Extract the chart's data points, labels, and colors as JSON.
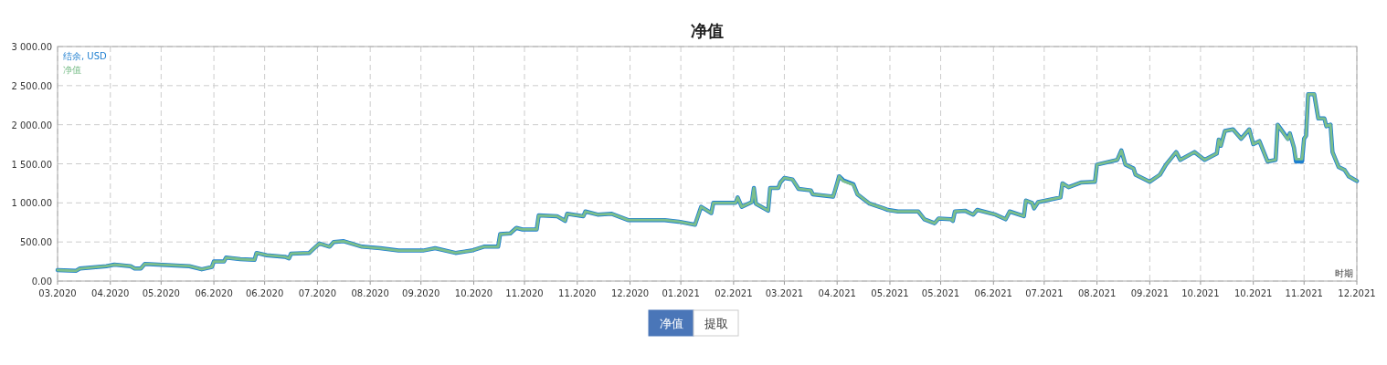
{
  "chart_data": {
    "type": "line",
    "title": "净值",
    "xlabel": "时期",
    "xlim": [
      "2020-03-18",
      "2021-12-18"
    ],
    "xticks": [
      {
        "value": "2020-03-18",
        "label": "03.2020"
      },
      {
        "value": "2020-04-13",
        "label": "04.2020"
      },
      {
        "value": "2020-05-08",
        "label": "05.2020"
      },
      {
        "value": "2020-06-03",
        "label": "06.2020"
      },
      {
        "value": "2020-06-28",
        "label": "06.2020"
      },
      {
        "value": "2020-07-24",
        "label": "07.2020"
      },
      {
        "value": "2020-08-19",
        "label": "08.2020"
      },
      {
        "value": "2020-09-13",
        "label": "09.2020"
      },
      {
        "value": "2020-10-09",
        "label": "10.2020"
      },
      {
        "value": "2020-11-03",
        "label": "11.2020"
      },
      {
        "value": "2020-11-29",
        "label": "11.2020"
      },
      {
        "value": "2020-12-25",
        "label": "12.2020"
      },
      {
        "value": "2021-01-19",
        "label": "01.2021"
      },
      {
        "value": "2021-02-14",
        "label": "02.2021"
      },
      {
        "value": "2021-03-11",
        "label": "03.2021"
      },
      {
        "value": "2021-04-06",
        "label": "04.2021"
      },
      {
        "value": "2021-05-02",
        "label": "05.2021"
      },
      {
        "value": "2021-05-27",
        "label": "05.2021"
      },
      {
        "value": "2021-06-22",
        "label": "06.2021"
      },
      {
        "value": "2021-07-17",
        "label": "07.2021"
      },
      {
        "value": "2021-08-12",
        "label": "08.2021"
      },
      {
        "value": "2021-09-07",
        "label": "09.2021"
      },
      {
        "value": "2021-10-02",
        "label": "10.2021"
      },
      {
        "value": "2021-10-28",
        "label": "10.2021"
      },
      {
        "value": "2021-11-22",
        "label": "11.2021"
      },
      {
        "value": "2021-12-18",
        "label": "12.2021"
      }
    ],
    "ylim": [
      0,
      3000
    ],
    "yticks": [
      {
        "value": 0,
        "label": "0.00"
      },
      {
        "value": 500,
        "label": "500.00"
      },
      {
        "value": 1000,
        "label": "1 000.00"
      },
      {
        "value": 1500,
        "label": "1 500.00"
      },
      {
        "value": 2000,
        "label": "2 000.00"
      },
      {
        "value": 2500,
        "label": "2 500.00"
      },
      {
        "value": 3000,
        "label": "3 000.00"
      }
    ],
    "grid": true,
    "legend": "top left",
    "line_style": "solid",
    "x": [
      "2020-03-18",
      "2020-03-27",
      "2020-03-29",
      "2020-04-11",
      "2020-04-15",
      "2020-04-23",
      "2020-04-25",
      "2020-04-28",
      "2020-04-30",
      "2020-05-22",
      "2020-05-28",
      "2020-06-02",
      "2020-06-03",
      "2020-06-08",
      "2020-06-09",
      "2020-06-16",
      "2020-06-23",
      "2020-06-24",
      "2020-06-29",
      "2020-07-08",
      "2020-07-10",
      "2020-07-11",
      "2020-07-20",
      "2020-07-22",
      "2020-07-25",
      "2020-07-30",
      "2020-08-01",
      "2020-08-06",
      "2020-08-15",
      "2020-08-24",
      "2020-09-02",
      "2020-09-14",
      "2020-09-20",
      "2020-09-30",
      "2020-10-08",
      "2020-10-14",
      "2020-10-21",
      "2020-10-22",
      "2020-10-27",
      "2020-10-30",
      "2020-11-02",
      "2020-11-09",
      "2020-11-10",
      "2020-11-19",
      "2020-11-23",
      "2020-11-24",
      "2020-12-02",
      "2020-12-03",
      "2020-12-09",
      "2020-12-16",
      "2020-12-24",
      "2021-01-11",
      "2021-01-18",
      "2021-01-26",
      "2021-01-29",
      "2021-02-03",
      "2021-02-04",
      "2021-02-15",
      "2021-02-16",
      "2021-02-18",
      "2021-02-23",
      "2021-02-24",
      "2021-02-25",
      "2021-03-03",
      "2021-03-04",
      "2021-03-08",
      "2021-03-09",
      "2021-03-11",
      "2021-03-15",
      "2021-03-18",
      "2021-03-24",
      "2021-03-25",
      "2021-04-04",
      "2021-04-05",
      "2021-04-07",
      "2021-04-09",
      "2021-04-14",
      "2021-04-16",
      "2021-04-22",
      "2021-04-29",
      "2021-05-01",
      "2021-05-06",
      "2021-05-16",
      "2021-05-19",
      "2021-05-24",
      "2021-05-26",
      "2021-06-01",
      "2021-06-02",
      "2021-06-03",
      "2021-06-08",
      "2021-06-12",
      "2021-06-14",
      "2021-06-23",
      "2021-06-28",
      "2021-06-30",
      "2021-07-07",
      "2021-07-08",
      "2021-07-11",
      "2021-07-12",
      "2021-07-14",
      "2021-07-25",
      "2021-07-26",
      "2021-07-29",
      "2021-08-04",
      "2021-08-11",
      "2021-08-12",
      "2021-08-22",
      "2021-08-24",
      "2021-08-26",
      "2021-08-30",
      "2021-08-31",
      "2021-09-07",
      "2021-09-12",
      "2021-09-15",
      "2021-09-20",
      "2021-09-22",
      "2021-09-29",
      "2021-10-04",
      "2021-10-10",
      "2021-10-11",
      "2021-10-12",
      "2021-10-14",
      "2021-10-18",
      "2021-10-22",
      "2021-10-26",
      "2021-10-28",
      "2021-10-31",
      "2021-11-04",
      "2021-11-08",
      "2021-11-09",
      "2021-11-14",
      "2021-11-15",
      "2021-11-17",
      "2021-11-18",
      "2021-11-21",
      "2021-11-22",
      "2021-11-23",
      "2021-11-24",
      "2021-11-27",
      "2021-11-29",
      "2021-12-02",
      "2021-12-03",
      "2021-12-05",
      "2021-12-06",
      "2021-12-09",
      "2021-12-12",
      "2021-12-14",
      "2021-12-18"
    ],
    "series": [
      {
        "name": "结余, USD",
        "color": "#1f7fd0",
        "values": [
          140,
          130,
          160,
          190,
          210,
          190,
          160,
          160,
          220,
          190,
          150,
          180,
          250,
          250,
          300,
          280,
          270,
          360,
          330,
          310,
          290,
          350,
          360,
          410,
          480,
          440,
          500,
          510,
          440,
          420,
          390,
          390,
          420,
          360,
          390,
          440,
          440,
          600,
          610,
          680,
          660,
          660,
          840,
          830,
          770,
          860,
          830,
          890,
          850,
          860,
          780,
          780,
          760,
          720,
          950,
          870,
          1000,
          1000,
          1070,
          950,
          1010,
          1190,
          990,
          900,
          1190,
          1190,
          1260,
          1320,
          1300,
          1180,
          1160,
          1110,
          1080,
          1160,
          1340,
          1290,
          1240,
          1110,
          990,
          930,
          910,
          890,
          890,
          790,
          740,
          800,
          790,
          770,
          890,
          900,
          850,
          910,
          850,
          790,
          890,
          830,
          1030,
          1000,
          930,
          1010,
          1070,
          1250,
          1200,
          1260,
          1270,
          1490,
          1550,
          1670,
          1490,
          1440,
          1360,
          1270,
          1360,
          1490,
          1650,
          1550,
          1650,
          1550,
          1630,
          1810,
          1730,
          1920,
          1940,
          1820,
          1940,
          1750,
          1790,
          1530,
          1550,
          2000,
          1820,
          1890,
          1710,
          1530,
          1530,
          1820,
          1860,
          2390,
          2390,
          2080,
          2080,
          1980,
          2000,
          1650,
          1460,
          1420,
          1340,
          1280
        ]
      },
      {
        "name": "净值",
        "color": "#7cbf8c",
        "values": [
          140,
          130,
          160,
          190,
          210,
          190,
          160,
          160,
          220,
          190,
          150,
          180,
          250,
          250,
          300,
          280,
          270,
          360,
          330,
          310,
          290,
          350,
          360,
          410,
          480,
          440,
          500,
          510,
          440,
          420,
          390,
          390,
          420,
          360,
          390,
          440,
          440,
          600,
          610,
          680,
          660,
          660,
          840,
          830,
          770,
          860,
          830,
          890,
          850,
          860,
          780,
          780,
          760,
          720,
          950,
          870,
          1000,
          1000,
          1070,
          950,
          1010,
          1190,
          990,
          900,
          1190,
          1190,
          1260,
          1320,
          1300,
          1180,
          1160,
          1110,
          1080,
          1160,
          1340,
          1280,
          1230,
          1110,
          990,
          930,
          910,
          890,
          890,
          790,
          740,
          800,
          790,
          770,
          890,
          900,
          850,
          910,
          850,
          790,
          890,
          830,
          1030,
          1000,
          930,
          1010,
          1070,
          1250,
          1200,
          1260,
          1270,
          1490,
          1550,
          1670,
          1490,
          1440,
          1360,
          1270,
          1360,
          1490,
          1650,
          1550,
          1650,
          1550,
          1630,
          1810,
          1730,
          1920,
          1940,
          1820,
          1940,
          1750,
          1790,
          1530,
          1550,
          2000,
          1810,
          1890,
          1710,
          1560,
          1560,
          1820,
          1860,
          2390,
          2390,
          2080,
          2080,
          1980,
          2000,
          1650,
          1460,
          1420,
          1340,
          1280
        ]
      }
    ],
    "annotations": [
      "净值",
      "提取"
    ]
  }
}
